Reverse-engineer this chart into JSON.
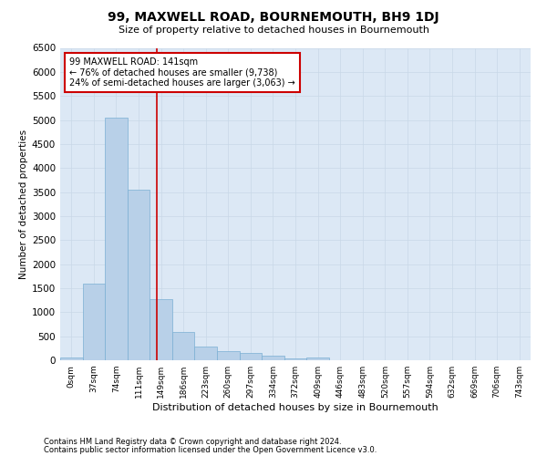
{
  "title": "99, MAXWELL ROAD, BOURNEMOUTH, BH9 1DJ",
  "subtitle": "Size of property relative to detached houses in Bournemouth",
  "xlabel": "Distribution of detached houses by size in Bournemouth",
  "ylabel": "Number of detached properties",
  "footnote1": "Contains HM Land Registry data © Crown copyright and database right 2024.",
  "footnote2": "Contains public sector information licensed under the Open Government Licence v3.0.",
  "bar_labels": [
    "0sqm",
    "37sqm",
    "74sqm",
    "111sqm",
    "149sqm",
    "186sqm",
    "223sqm",
    "260sqm",
    "297sqm",
    "334sqm",
    "372sqm",
    "409sqm",
    "446sqm",
    "483sqm",
    "520sqm",
    "557sqm",
    "594sqm",
    "632sqm",
    "669sqm",
    "706sqm",
    "743sqm"
  ],
  "bar_values": [
    55,
    1600,
    5050,
    3550,
    1280,
    580,
    290,
    185,
    155,
    95,
    45,
    50,
    0,
    0,
    0,
    0,
    0,
    0,
    0,
    0,
    0
  ],
  "bar_color": "#b8d0e8",
  "bar_edge_color": "#7aafd4",
  "grid_color": "#c8d8e8",
  "background_color": "#dce8f5",
  "annotation_text": "99 MAXWELL ROAD: 141sqm\n← 76% of detached houses are smaller (9,738)\n24% of semi-detached houses are larger (3,063) →",
  "annotation_box_color": "#ffffff",
  "annotation_box_edge": "#cc0000",
  "vline_color": "#cc0000",
  "ylim": [
    0,
    6500
  ],
  "yticks": [
    0,
    500,
    1000,
    1500,
    2000,
    2500,
    3000,
    3500,
    4000,
    4500,
    5000,
    5500,
    6000,
    6500
  ]
}
